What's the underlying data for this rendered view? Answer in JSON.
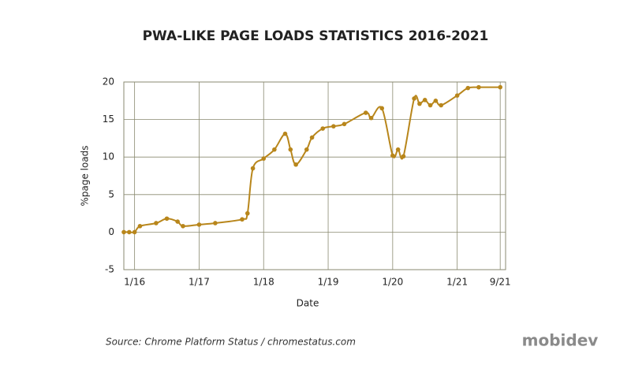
{
  "chart_data": {
    "type": "line",
    "title": "PWA-LIKE PAGE LOADS STATISTICS 2016-2021",
    "x_label": "Date",
    "y_label": "%page loads",
    "x": [
      "2015-11",
      "2015-12",
      "2016-01",
      "2016-02",
      "2016-05",
      "2016-07",
      "2016-09",
      "2016-10",
      "2017-01",
      "2017-04",
      "2017-09",
      "2017-10",
      "2017-11",
      "2018-01",
      "2018-03",
      "2018-05",
      "2018-06",
      "2018-07",
      "2018-09",
      "2018-10",
      "2018-12",
      "2019-02",
      "2019-04",
      "2019-08",
      "2019-09",
      "2019-11",
      "2020-01",
      "2020-02",
      "2020-03",
      "2020-05",
      "2020-06",
      "2020-07",
      "2020-08",
      "2020-09",
      "2020-10",
      "2021-01",
      "2021-03",
      "2021-05",
      "2021-09"
    ],
    "values": [
      0,
      0,
      0,
      0.8,
      1.2,
      1.8,
      1.4,
      0.8,
      1.0,
      1.2,
      1.7,
      2.5,
      8.5,
      9.8,
      11,
      13.1,
      11,
      9,
      11,
      12.6,
      13.8,
      14.1,
      14.4,
      15.9,
      15.2,
      16.5,
      10.2,
      11,
      10.1,
      17.8,
      17.1,
      17.6,
      16.9,
      17.5,
      16.9,
      18.2,
      19.2,
      19.3,
      19.3
    ],
    "color": "#b8861b",
    "xlim": [
      "2015-11",
      "2021-10"
    ],
    "xticks": [
      {
        "value": "2016-01",
        "label": "1/16"
      },
      {
        "value": "2017-01",
        "label": "1/17"
      },
      {
        "value": "2018-01",
        "label": "1/18"
      },
      {
        "value": "2019-01",
        "label": "1/19"
      },
      {
        "value": "2020-01",
        "label": "1/20"
      },
      {
        "value": "2021-01",
        "label": "1/21"
      },
      {
        "value": "2021-09",
        "label": "9/21"
      }
    ],
    "ylim": [
      -5,
      20
    ],
    "yticks": [
      -5,
      0,
      5,
      10,
      15,
      20
    ],
    "grid": true
  },
  "source": "Source: Chrome Platform Status / chromestatus.com",
  "brand": "mobidev"
}
